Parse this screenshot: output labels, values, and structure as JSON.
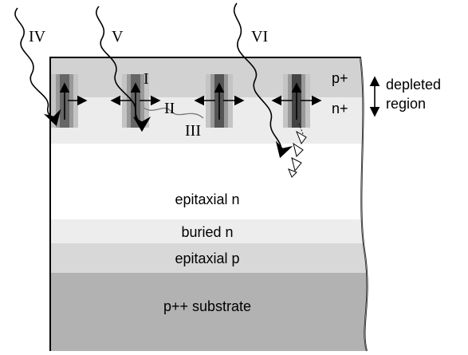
{
  "particles": [
    "IV",
    "V",
    "VI"
  ],
  "processes": [
    "I",
    "II",
    "III"
  ],
  "implants": [
    "p+",
    "n+"
  ],
  "depleted_region": [
    "depleted",
    "region"
  ],
  "layers": [
    "epitaxial n",
    "buried n",
    "epitaxial p",
    "p++ substrate"
  ]
}
